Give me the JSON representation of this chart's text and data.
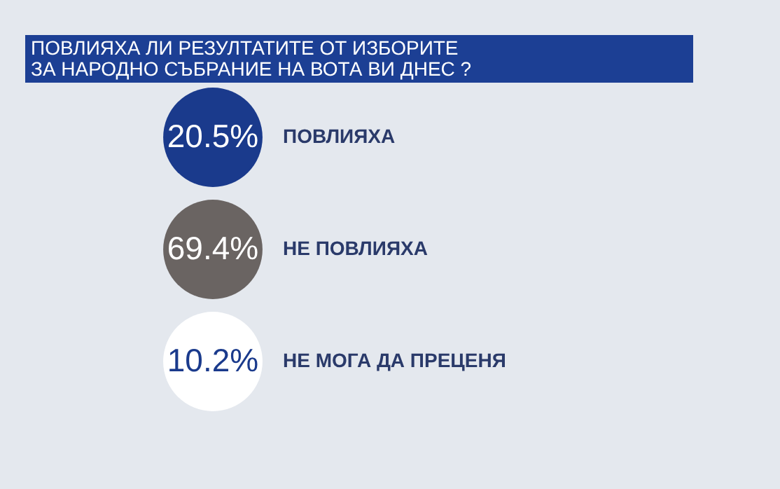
{
  "chart_data": {
    "type": "other",
    "title": "ПОВЛИЯХА ЛИ РЕЗУЛТАТИТЕ ОТ ИЗБОРИТЕ\nЗА НАРОДНО СЪБРАНИЕ НА ВОТА ВИ ДНЕС ?",
    "categories": [
      "ПОВЛИЯХА",
      "НЕ ПОВЛИЯХА",
      "НЕ МОГА ДА ПРЕЦЕНЯ"
    ],
    "values": [
      20.5,
      69.4,
      10.2
    ],
    "colors": [
      "#1a3a8c",
      "#6a6462",
      "#ffffff"
    ],
    "data_labels": true,
    "value_labels": [
      "20.5%",
      "69.4%",
      "10.2%"
    ]
  }
}
